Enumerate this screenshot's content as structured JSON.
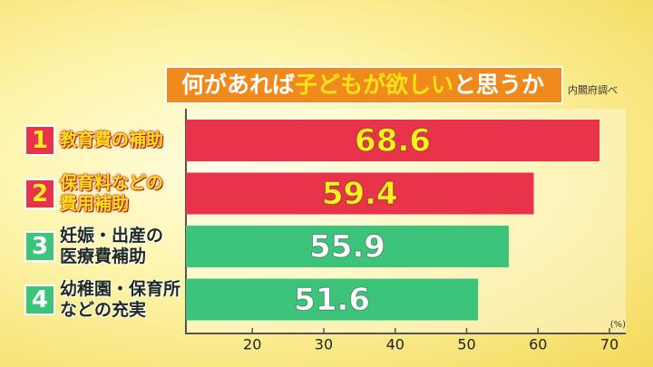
{
  "chart_data": {
    "type": "bar",
    "orientation": "horizontal",
    "title": [
      "何があれば",
      "子どもが欲しい",
      "と思うか"
    ],
    "source": "内閣府調べ",
    "unit": "(%)",
    "ranks": [
      1,
      2,
      3,
      4
    ],
    "categories": [
      "教育費の補助",
      "保育料などの\n費用補助",
      "妊娠・出産の\n医療費補助",
      "幼稚園・保育所\nなどの充実"
    ],
    "values": [
      68.6,
      59.4,
      55.9,
      51.6
    ],
    "colors": [
      "#e8334a",
      "#e8334a",
      "#3cc47a",
      "#3cc47a"
    ],
    "label_colors": [
      "#ffee22",
      "#ffee22",
      "#ffffff",
      "#ffffff"
    ],
    "category_colors": [
      "#ffe21a",
      "#ffe21a",
      "#1e2a22",
      "#1e2a22"
    ],
    "xlim": [
      10.7,
      70
    ],
    "xticks": [
      20,
      30,
      40,
      50,
      60,
      70
    ],
    "grid": false
  }
}
